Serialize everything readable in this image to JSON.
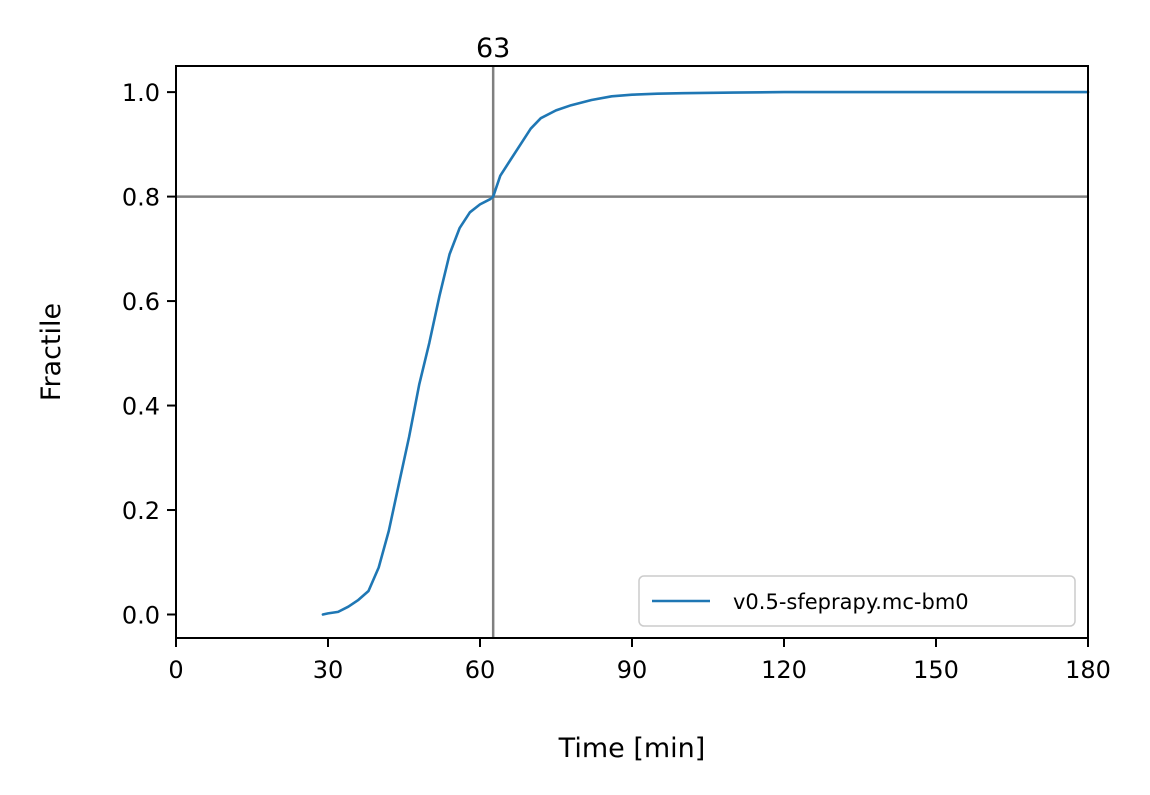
{
  "chart_data": {
    "type": "line",
    "title": "",
    "xlabel": "Time [min]",
    "ylabel": "Fractile",
    "xlim": [
      0,
      180
    ],
    "ylim": [
      -0.045,
      1.05
    ],
    "xticks": [
      0,
      30,
      60,
      90,
      120,
      150,
      180
    ],
    "xtick_labels": [
      "0",
      "30",
      "60",
      "90",
      "120",
      "150",
      "180"
    ],
    "yticks": [
      0.0,
      0.2,
      0.4,
      0.6,
      0.8,
      1.0
    ],
    "ytick_labels": [
      "0.0",
      "0.2",
      "0.4",
      "0.6",
      "0.8",
      "1.0"
    ],
    "grid": false,
    "legend": {
      "position": "lower-right"
    },
    "reference_lines": {
      "horizontal_y": 0.8,
      "vertical_x": 62.6,
      "vertical_label": "63",
      "color": "#808080"
    },
    "series": [
      {
        "name": "v0.5-sfeprapy.mc-bm0",
        "color": "#1f77b4",
        "x": [
          29,
          30,
          32,
          34,
          36,
          38,
          40,
          42,
          44,
          46,
          48,
          50,
          52,
          54,
          56,
          58,
          60,
          62,
          62.6,
          64,
          66,
          68,
          70,
          72,
          75,
          78,
          82,
          86,
          90,
          95,
          100,
          110,
          120,
          150,
          180
        ],
        "y": [
          0.0,
          0.002,
          0.005,
          0.015,
          0.028,
          0.045,
          0.09,
          0.16,
          0.25,
          0.34,
          0.44,
          0.52,
          0.61,
          0.69,
          0.74,
          0.77,
          0.785,
          0.795,
          0.8,
          0.84,
          0.87,
          0.9,
          0.93,
          0.95,
          0.965,
          0.975,
          0.985,
          0.992,
          0.995,
          0.997,
          0.998,
          0.999,
          1.0,
          1.0,
          1.0
        ]
      }
    ]
  }
}
